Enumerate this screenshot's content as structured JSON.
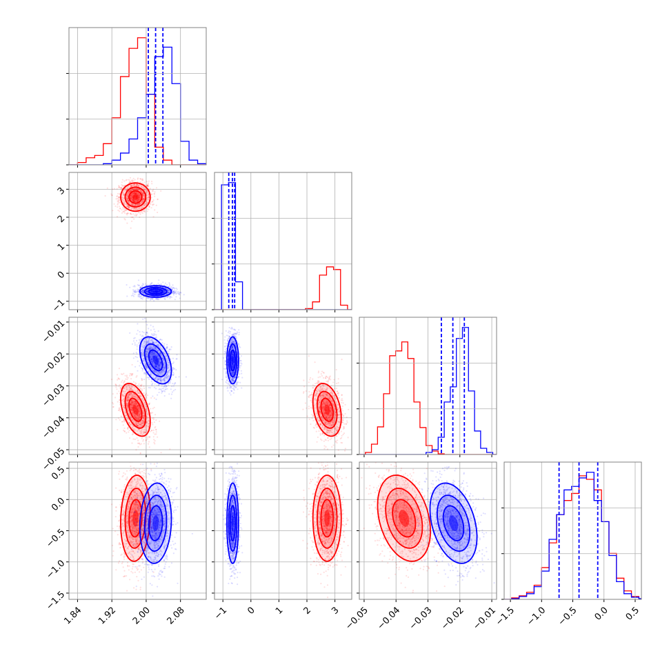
{
  "chart_data": {
    "type": "corner",
    "title": "",
    "colors": {
      "red": "#ff0000",
      "blue": "#0000ff",
      "grid": "#b0b0b0",
      "frame": "#808080"
    },
    "grid": true,
    "parameters": [
      {
        "index": 0,
        "range": [
          1.82,
          2.14
        ],
        "ticks": [
          1.84,
          1.92,
          2.0,
          2.08
        ],
        "tick_labels": [
          "1.84",
          "1.92",
          "2.00",
          "2.08"
        ]
      },
      {
        "index": 1,
        "range": [
          -1.3,
          3.6
        ],
        "ticks": [
          -1,
          0,
          1,
          2,
          3
        ],
        "tick_labels": [
          "−1",
          "0",
          "1",
          "2",
          "3"
        ]
      },
      {
        "index": 2,
        "range": [
          -0.0515,
          -0.0085
        ],
        "ticks": [
          -0.05,
          -0.04,
          -0.03,
          -0.02,
          -0.01
        ],
        "tick_labels": [
          "−0.05",
          "−0.04",
          "−0.03",
          "−0.02",
          "−0.01"
        ]
      },
      {
        "index": 3,
        "range": [
          -1.6,
          0.6
        ],
        "ticks": [
          -1.5,
          -1.0,
          -0.5,
          0.0,
          0.5
        ],
        "tick_labels": [
          "−1.5",
          "−1.0",
          "−0.5",
          "0.0",
          "0.5"
        ]
      }
    ],
    "series": [
      {
        "color": "red",
        "mean": [
          1.975,
          2.72,
          -0.0375,
          -0.3
        ],
        "sd": [
          0.015,
          0.22,
          0.0036,
          0.3
        ],
        "corr": {
          "1-0": 0.0,
          "2-0": -0.45,
          "2-1": -0.3,
          "3-0": 0.1,
          "3-1": 0.0,
          "3-2": -0.3
        }
      },
      {
        "color": "blue",
        "mean": [
          2.022,
          -0.65,
          -0.022,
          -0.38
        ],
        "sd": [
          0.016,
          0.09,
          0.0032,
          0.28
        ],
        "corr": {
          "1-0": 0.0,
          "2-0": -0.45,
          "2-1": 0.0,
          "3-0": 0.1,
          "3-1": 0.0,
          "3-2": -0.35
        }
      }
    ],
    "histograms": [
      {
        "param": 0,
        "bins": [
          1.82,
          1.84,
          1.86,
          1.88,
          1.9,
          1.92,
          1.94,
          1.96,
          1.98,
          2.0,
          2.02,
          2.04,
          2.06,
          2.08,
          2.1,
          2.12,
          2.14
        ],
        "red": [
          0,
          2,
          6,
          8,
          18,
          40,
          75,
          99,
          108,
          60,
          15,
          4,
          0,
          0,
          0,
          0
        ],
        "blue": [
          0,
          0,
          0,
          0,
          1,
          4,
          10,
          22,
          40,
          60,
          92,
          100,
          69,
          20,
          4,
          1
        ],
        "quantile_lines": [
          2.005,
          2.022,
          2.039
        ]
      },
      {
        "param": 1,
        "bins": [
          -1.3,
          -1.05,
          -0.8,
          -0.55,
          -0.3,
          -0.05,
          0.2,
          0.45,
          0.7,
          0.95,
          1.2,
          1.45,
          1.7,
          1.95,
          2.2,
          2.45,
          2.7,
          2.95,
          3.2,
          3.45,
          3.6
        ],
        "red": [
          0,
          0,
          0,
          0,
          0,
          0,
          0,
          0,
          0,
          0,
          0,
          0,
          0,
          5,
          35,
          155,
          192,
          180,
          20,
          0
        ],
        "blue": [
          0,
          560,
          570,
          125,
          0,
          0,
          0,
          0,
          0,
          0,
          0,
          0,
          0,
          0,
          0,
          0,
          0,
          0,
          0,
          0
        ],
        "quantile_lines": [
          -0.79,
          -0.66,
          -0.58
        ]
      },
      {
        "param": 2,
        "bins": [
          -0.0515,
          -0.0496,
          -0.0477,
          -0.0458,
          -0.0439,
          -0.042,
          -0.0401,
          -0.0382,
          -0.0363,
          -0.0344,
          -0.0325,
          -0.0306,
          -0.0287,
          -0.0268,
          -0.0249,
          -0.023,
          -0.0211,
          -0.0192,
          -0.0173,
          -0.0154,
          -0.0135,
          -0.0116,
          -0.0097,
          -0.0085
        ],
        "red": [
          0,
          3,
          15,
          40,
          88,
          143,
          150,
          163,
          139,
          76,
          39,
          13,
          5,
          1,
          0,
          0,
          0,
          0,
          0,
          0,
          0,
          0,
          0
        ],
        "blue": [
          0,
          0,
          0,
          0,
          0,
          0,
          0,
          0,
          0,
          0,
          0,
          3,
          7,
          25,
          76,
          98,
          168,
          184,
          92,
          34,
          9,
          3,
          0
        ],
        "quantile_lines": [
          -0.0258,
          -0.0222,
          -0.0186
        ]
      },
      {
        "param": 3,
        "bins": [
          -1.6,
          -1.48,
          -1.36,
          -1.24,
          -1.12,
          -1.0,
          -0.88,
          -0.76,
          -0.64,
          -0.52,
          -0.4,
          -0.28,
          -0.16,
          -0.04,
          0.08,
          0.2,
          0.32,
          0.44,
          0.56,
          0.6
        ],
        "red": [
          0,
          2,
          5,
          10,
          20,
          45,
          80,
          120,
          140,
          150,
          175,
          170,
          155,
          110,
          65,
          30,
          12,
          4,
          1
        ],
        "blue": [
          0,
          1,
          4,
          8,
          18,
          40,
          85,
          120,
          155,
          160,
          172,
          180,
          140,
          110,
          62,
          25,
          8,
          3,
          1
        ],
        "quantile_lines": [
          -0.72,
          -0.4,
          -0.1
        ]
      }
    ]
  }
}
